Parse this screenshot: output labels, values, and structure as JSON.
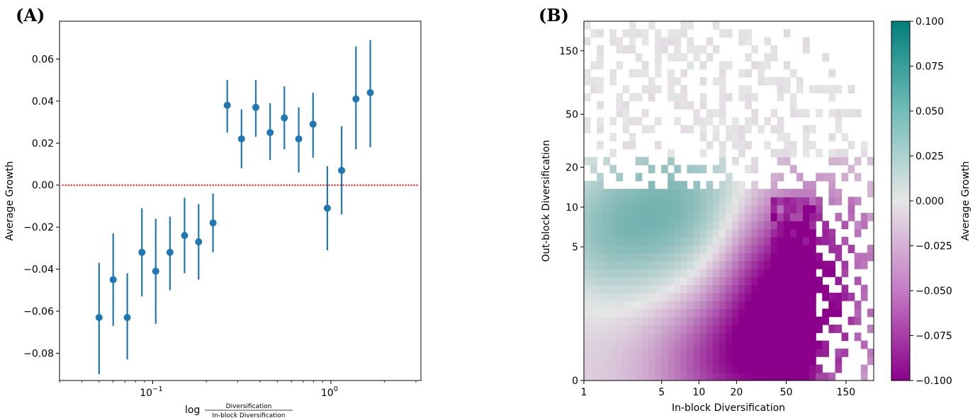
{
  "colors": {
    "point": "#1f77b4",
    "reference_line": "#ff0000",
    "cmap_low": "#8b008b",
    "cmap_mid": "#e6e6e6",
    "cmap_high": "#007f7a",
    "nan_cell": "#ffffff"
  },
  "chart_data": [
    {
      "type": "scatter",
      "panel_label": "(A)",
      "xlabel_prefix": "log",
      "xlabel_numerator": "Diversification",
      "xlabel_denominator": "In-block Diversification",
      "ylabel": "Average Growth",
      "x_scale": "log",
      "xlim": [
        0.03,
        3.2
      ],
      "ylim": [
        -0.093,
        0.078
      ],
      "x_ticks": [
        {
          "value": 0.1,
          "base": "10",
          "exp": "−1"
        },
        {
          "value": 1,
          "base": "10",
          "exp": "0"
        }
      ],
      "y_ticks": [
        {
          "value": -0.08,
          "label": "−0.08"
        },
        {
          "value": -0.06,
          "label": "−0.06"
        },
        {
          "value": -0.04,
          "label": "−0.04"
        },
        {
          "value": -0.02,
          "label": "−0.02"
        },
        {
          "value": 0.0,
          "label": "0.00"
        },
        {
          "value": 0.02,
          "label": "0.02"
        },
        {
          "value": 0.04,
          "label": "0.04"
        },
        {
          "value": 0.06,
          "label": "0.06"
        }
      ],
      "reference_line": {
        "y": 0.0,
        "x_range": [
          0.031,
          3.1
        ],
        "style": "dotted"
      },
      "points": [
        {
          "x": 0.05,
          "y": -0.063,
          "ylow": -0.09,
          "yhigh": -0.037
        },
        {
          "x": 0.06,
          "y": -0.045,
          "ylow": -0.067,
          "yhigh": -0.023
        },
        {
          "x": 0.072,
          "y": -0.063,
          "ylow": -0.083,
          "yhigh": -0.042
        },
        {
          "x": 0.087,
          "y": -0.032,
          "ylow": -0.053,
          "yhigh": -0.011
        },
        {
          "x": 0.104,
          "y": -0.041,
          "ylow": -0.066,
          "yhigh": -0.016
        },
        {
          "x": 0.125,
          "y": -0.032,
          "ylow": -0.05,
          "yhigh": -0.015
        },
        {
          "x": 0.151,
          "y": -0.024,
          "ylow": -0.042,
          "yhigh": -0.006
        },
        {
          "x": 0.181,
          "y": -0.027,
          "ylow": -0.045,
          "yhigh": -0.009
        },
        {
          "x": 0.218,
          "y": -0.018,
          "ylow": -0.032,
          "yhigh": -0.004
        },
        {
          "x": 0.262,
          "y": 0.038,
          "ylow": 0.025,
          "yhigh": 0.05
        },
        {
          "x": 0.315,
          "y": 0.022,
          "ylow": 0.008,
          "yhigh": 0.036
        },
        {
          "x": 0.379,
          "y": 0.037,
          "ylow": 0.023,
          "yhigh": 0.05
        },
        {
          "x": 0.456,
          "y": 0.025,
          "ylow": 0.012,
          "yhigh": 0.039
        },
        {
          "x": 0.548,
          "y": 0.032,
          "ylow": 0.017,
          "yhigh": 0.047
        },
        {
          "x": 0.66,
          "y": 0.022,
          "ylow": 0.006,
          "yhigh": 0.037
        },
        {
          "x": 0.794,
          "y": 0.029,
          "ylow": 0.013,
          "yhigh": 0.044
        },
        {
          "x": 0.955,
          "y": -0.011,
          "ylow": -0.031,
          "yhigh": 0.009
        },
        {
          "x": 1.149,
          "y": 0.007,
          "ylow": -0.014,
          "yhigh": 0.028
        },
        {
          "x": 1.382,
          "y": 0.041,
          "ylow": 0.017,
          "yhigh": 0.066
        },
        {
          "x": 1.664,
          "y": 0.044,
          "ylow": 0.018,
          "yhigh": 0.069
        }
      ]
    },
    {
      "type": "heatmap",
      "panel_label": "(B)",
      "xlabel": "In-block Diversification",
      "ylabel": "Out-block Diversification",
      "colorbar_label": "Average Growth",
      "scale": "asinh",
      "xlim": [
        1,
        250
      ],
      "ylim": [
        0,
        250
      ],
      "x_ticks": [
        {
          "value": 1,
          "label": "1"
        },
        {
          "value": 5,
          "label": "5"
        },
        {
          "value": 10,
          "label": "10"
        },
        {
          "value": 20,
          "label": "20"
        },
        {
          "value": 50,
          "label": "50"
        },
        {
          "value": 150,
          "label": "150"
        }
      ],
      "y_ticks": [
        {
          "value": 0,
          "label": "0"
        },
        {
          "value": 5,
          "label": "5"
        },
        {
          "value": 10,
          "label": "10"
        },
        {
          "value": 20,
          "label": "20"
        },
        {
          "value": 50,
          "label": "50"
        },
        {
          "value": 150,
          "label": "150"
        }
      ],
      "bins": 45,
      "color_range": [
        -0.1,
        0.1
      ],
      "colorbar_ticks": [
        {
          "value": 0.1,
          "label": "0.100"
        },
        {
          "value": 0.075,
          "label": "0.075"
        },
        {
          "value": 0.05,
          "label": "0.050"
        },
        {
          "value": 0.025,
          "label": "0.025"
        },
        {
          "value": 0.0,
          "label": "0.000"
        },
        {
          "value": -0.025,
          "label": "−0.025"
        },
        {
          "value": -0.05,
          "label": "−0.050"
        },
        {
          "value": -0.075,
          "label": "−0.075"
        },
        {
          "value": -0.1,
          "label": "−0.100"
        }
      ]
    }
  ]
}
